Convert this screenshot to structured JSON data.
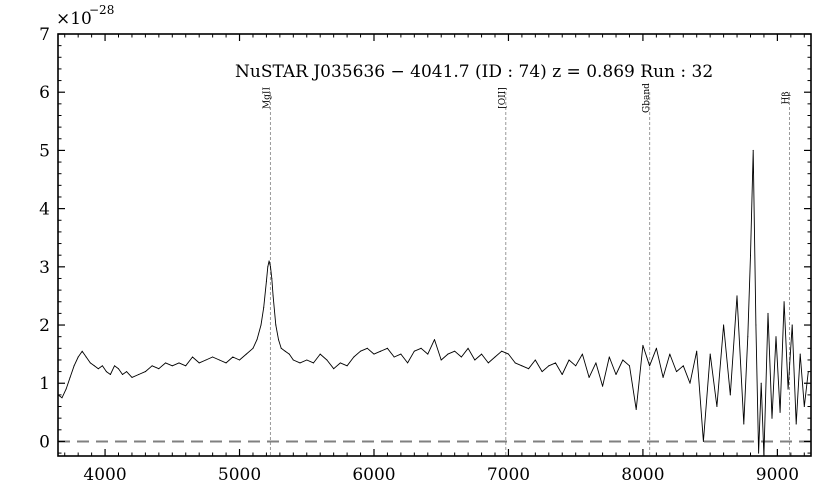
{
  "chart_data": {
    "type": "line",
    "title": "NuSTAR J035636 − 4041.7 (ID : 74)   z = 0.869   Run : 32",
    "xlabel": "",
    "ylabel": "",
    "y_exponent_label": "×10",
    "y_exponent_power": "−28",
    "xlim": [
      3650,
      9250
    ],
    "ylim": [
      -0.25,
      7
    ],
    "x_ticks": [
      4000,
      5000,
      6000,
      7000,
      8000,
      9000
    ],
    "y_ticks": [
      0,
      1,
      2,
      3,
      4,
      5,
      6,
      7
    ],
    "grid": false,
    "zero_line": {
      "y": 0,
      "style": "dashed",
      "color": "#808080"
    },
    "emission_lines": [
      {
        "name": "MgII",
        "x": 5230
      },
      {
        "name": "[OII]",
        "x": 6980
      },
      {
        "name": "Gband",
        "x": 8050
      },
      {
        "name": "Hβ",
        "x": 9090
      }
    ],
    "series": [
      {
        "color": "#000000",
        "x": [
          3650,
          3680,
          3710,
          3740,
          3770,
          3800,
          3830,
          3860,
          3890,
          3920,
          3950,
          3980,
          4010,
          4040,
          4070,
          4100,
          4130,
          4160,
          4200,
          4250,
          4300,
          4350,
          4400,
          4450,
          4500,
          4550,
          4600,
          4650,
          4700,
          4750,
          4800,
          4850,
          4900,
          4950,
          5000,
          5050,
          5100,
          5130,
          5160,
          5180,
          5200,
          5210,
          5220,
          5230,
          5240,
          5250,
          5270,
          5290,
          5310,
          5340,
          5370,
          5400,
          5450,
          5500,
          5550,
          5600,
          5650,
          5700,
          5750,
          5800,
          5850,
          5900,
          5950,
          6000,
          6050,
          6100,
          6150,
          6200,
          6250,
          6300,
          6350,
          6400,
          6450,
          6500,
          6550,
          6600,
          6650,
          6700,
          6750,
          6800,
          6850,
          6900,
          6950,
          7000,
          7050,
          7100,
          7150,
          7200,
          7250,
          7300,
          7350,
          7400,
          7450,
          7500,
          7550,
          7600,
          7650,
          7700,
          7750,
          7800,
          7850,
          7900,
          7950,
          8000,
          8050,
          8100,
          8150,
          8200,
          8250,
          8300,
          8350,
          8400,
          8450,
          8500,
          8550,
          8600,
          8650,
          8700,
          8750,
          8780,
          8800,
          8820,
          8840,
          8860,
          8880,
          8900,
          8930,
          8960,
          8990,
          9020,
          9050,
          9080,
          9110,
          9140,
          9170,
          9200,
          9230
        ],
        "values": [
          0.8,
          0.75,
          0.9,
          1.1,
          1.3,
          1.45,
          1.55,
          1.45,
          1.35,
          1.3,
          1.25,
          1.3,
          1.2,
          1.15,
          1.3,
          1.25,
          1.15,
          1.2,
          1.1,
          1.15,
          1.2,
          1.3,
          1.25,
          1.35,
          1.3,
          1.35,
          1.3,
          1.45,
          1.35,
          1.4,
          1.45,
          1.4,
          1.35,
          1.45,
          1.4,
          1.5,
          1.6,
          1.75,
          2.0,
          2.3,
          2.75,
          3.0,
          3.1,
          3.0,
          2.8,
          2.5,
          2.0,
          1.75,
          1.6,
          1.55,
          1.5,
          1.4,
          1.35,
          1.4,
          1.35,
          1.5,
          1.4,
          1.25,
          1.35,
          1.3,
          1.45,
          1.55,
          1.6,
          1.5,
          1.55,
          1.6,
          1.45,
          1.5,
          1.35,
          1.55,
          1.6,
          1.5,
          1.75,
          1.4,
          1.5,
          1.55,
          1.45,
          1.6,
          1.4,
          1.5,
          1.35,
          1.45,
          1.55,
          1.5,
          1.35,
          1.3,
          1.25,
          1.4,
          1.2,
          1.3,
          1.35,
          1.15,
          1.4,
          1.3,
          1.5,
          1.1,
          1.35,
          0.95,
          1.45,
          1.15,
          1.4,
          1.3,
          0.55,
          1.65,
          1.3,
          1.6,
          1.1,
          1.5,
          1.2,
          1.3,
          1.0,
          1.55,
          0.0,
          1.5,
          0.6,
          2.0,
          0.8,
          2.5,
          0.3,
          1.8,
          3.2,
          5.0,
          2.0,
          -0.2,
          1.0,
          -0.25,
          2.2,
          0.4,
          1.8,
          0.5,
          2.4,
          0.9,
          2.0,
          0.3,
          1.5,
          0.6,
          1.2
        ]
      }
    ]
  }
}
